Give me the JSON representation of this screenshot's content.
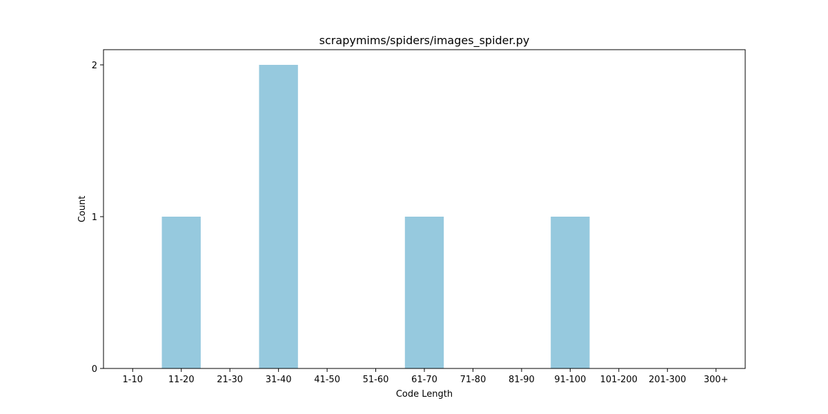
{
  "chart_data": {
    "type": "bar",
    "title": "scrapymims/spiders/images_spider.py",
    "xlabel": "Code Length",
    "ylabel": "Count",
    "categories": [
      "1-10",
      "11-20",
      "21-30",
      "31-40",
      "41-50",
      "51-60",
      "61-70",
      "71-80",
      "81-90",
      "91-100",
      "101-200",
      "201-300",
      "300+"
    ],
    "values": [
      0,
      1,
      0,
      2,
      0,
      0,
      1,
      0,
      0,
      1,
      0,
      0,
      0
    ],
    "yticks": [
      0,
      1,
      2
    ],
    "ylim": [
      0,
      2.1
    ],
    "grid": false,
    "bar_color": "#96c9de"
  }
}
